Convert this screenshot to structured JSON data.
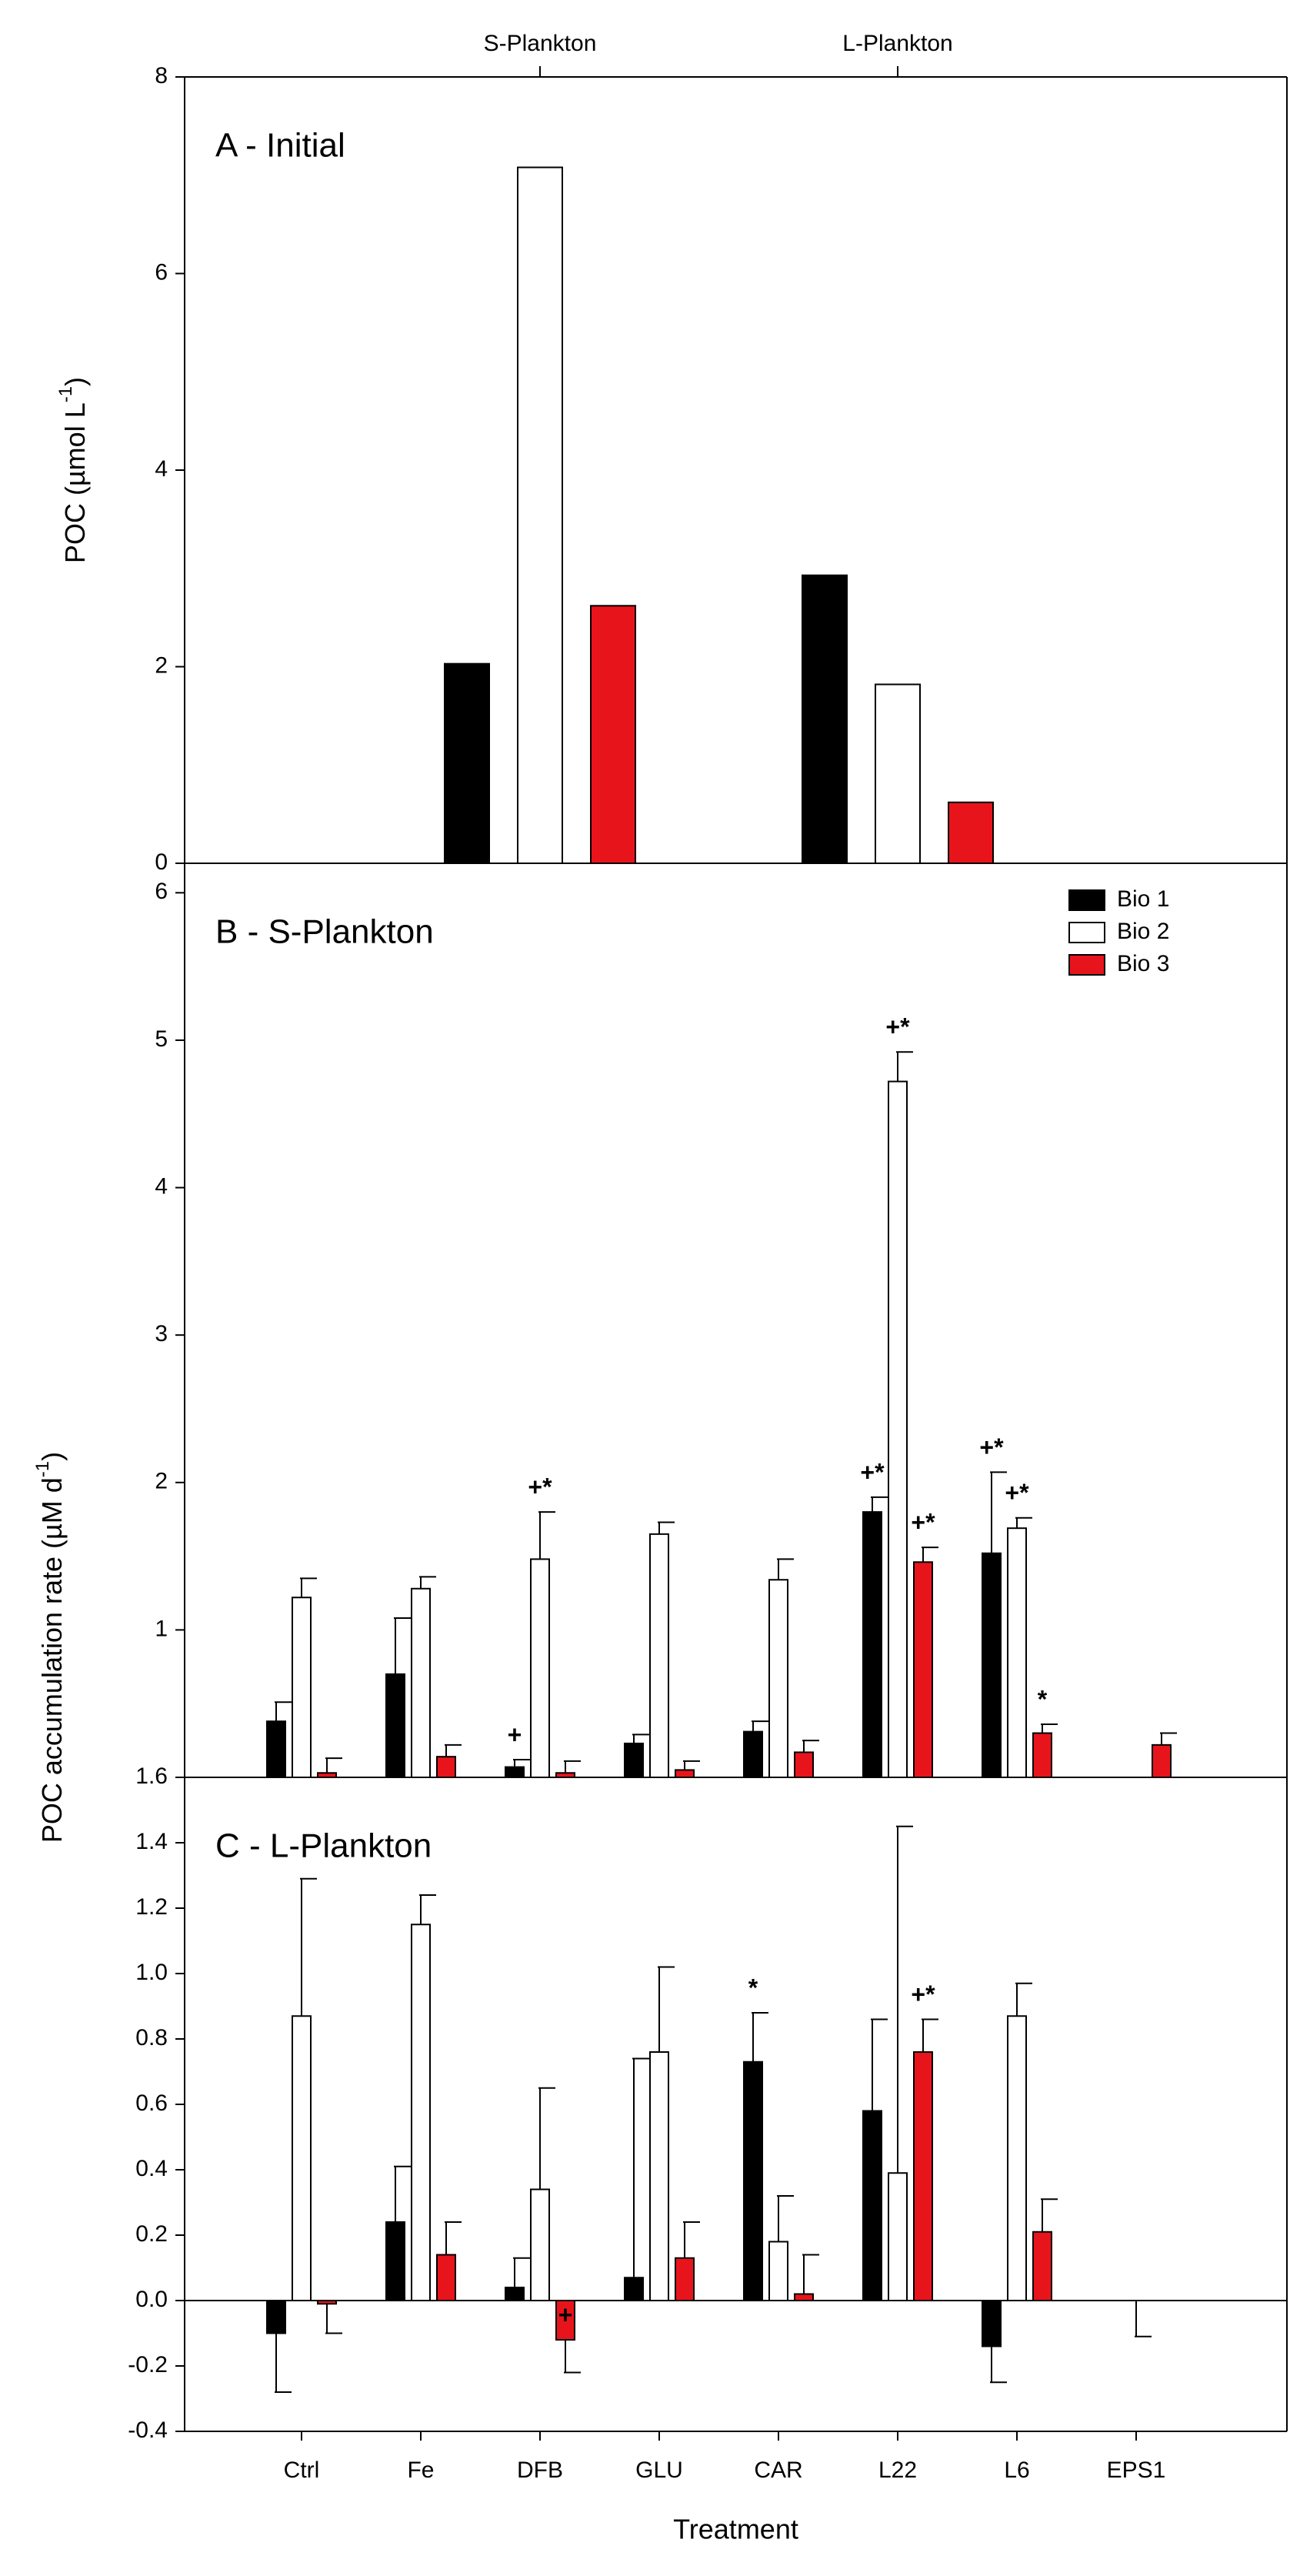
{
  "chart_data": [
    {
      "type": "bar",
      "title": "A - Initial",
      "y_label": "POC (µmol L",
      "y_label_sup": "-1",
      "y_label_end": ")",
      "categories": [
        "S-Plankton",
        "L-Plankton"
      ],
      "ylim": [
        0,
        8
      ],
      "yticks": [
        0,
        2,
        4,
        6,
        8
      ],
      "series": [
        {
          "color": "#000000",
          "values": [
            2.03,
            2.93
          ]
        },
        {
          "color": "#ffffff",
          "values": [
            7.08,
            1.82
          ]
        },
        {
          "color": "#e8141c",
          "values": [
            2.62,
            0.62
          ]
        }
      ]
    },
    {
      "type": "bar",
      "title": "B - S-Plankton",
      "y_label": "POC accumulation rate (µM d",
      "y_label_sup": "-1",
      "y_label_end": ")",
      "ylim": [
        0,
        6.2
      ],
      "yticks": [
        1,
        2,
        3,
        4,
        5,
        6
      ],
      "legend": "top-right",
      "series": [
        {
          "name": "Bio 1",
          "color": "#000000",
          "values": [
            0.38,
            0.7,
            0.07,
            0.23,
            0.31,
            1.8,
            1.52,
            null
          ],
          "errors": [
            0.13,
            0.38,
            0.05,
            0.06,
            0.07,
            0.1,
            0.55,
            null
          ],
          "annotations": [
            null,
            null,
            "+",
            null,
            null,
            "+*",
            "+*",
            null
          ]
        },
        {
          "name": "Bio 2",
          "color": "#ffffff",
          "values": [
            1.22,
            1.28,
            1.48,
            1.65,
            1.34,
            4.72,
            1.69,
            null
          ],
          "errors": [
            0.13,
            0.08,
            0.32,
            0.08,
            0.14,
            0.2,
            0.07,
            null
          ],
          "annotations": [
            null,
            null,
            "+*",
            null,
            null,
            "+*",
            "+*",
            null
          ]
        },
        {
          "name": "Bio 3",
          "color": "#e8141c",
          "values": [
            0.03,
            0.14,
            0.03,
            0.05,
            0.17,
            1.46,
            0.3,
            0.22
          ],
          "errors": [
            0.1,
            0.08,
            0.08,
            0.06,
            0.08,
            0.1,
            0.06,
            0.08
          ],
          "annotations": [
            null,
            null,
            null,
            null,
            null,
            "+*",
            "*",
            null
          ]
        }
      ]
    },
    {
      "type": "bar",
      "title": "C - L-Plankton",
      "x_label": "Treatment",
      "categories": [
        "Ctrl",
        "Fe",
        "DFB",
        "GLU",
        "CAR",
        "L22",
        "L6",
        "EPS1"
      ],
      "ylim": [
        -0.4,
        1.6
      ],
      "yticks": [
        -0.4,
        -0.2,
        {
          "value": 0,
          "label": "0.0"
        },
        0.2,
        0.4,
        0.6,
        0.8,
        {
          "value": 1,
          "label": "1.0"
        },
        1.2,
        1.4,
        1.6
      ],
      "series": [
        {
          "color": "#000000",
          "values": [
            -0.1,
            0.24,
            0.04,
            0.07,
            0.73,
            0.58,
            -0.14,
            null
          ],
          "errors": [
            0.18,
            0.17,
            0.09,
            0.67,
            0.15,
            0.28,
            0.11,
            null
          ],
          "annotations": [
            null,
            null,
            null,
            null,
            "*",
            null,
            null,
            null
          ]
        },
        {
          "color": "#ffffff",
          "values": [
            0.87,
            1.15,
            0.34,
            0.76,
            0.18,
            0.39,
            0.87,
            0
          ],
          "errors": [
            0.42,
            0.09,
            0.31,
            0.26,
            0.14,
            1.06,
            0.1,
            0.11
          ],
          "annotations": [
            null,
            null,
            null,
            null,
            null,
            null,
            null,
            null
          ]
        },
        {
          "color": "#e8141c",
          "values": [
            -0.01,
            0.14,
            -0.12,
            0.13,
            0.02,
            0.76,
            0.21,
            null
          ],
          "errors": [
            0.09,
            0.1,
            0.1,
            0.11,
            0.12,
            0.1,
            0.1,
            null
          ],
          "annotations": [
            null,
            null,
            "+",
            null,
            null,
            "+*",
            null,
            null
          ]
        }
      ]
    }
  ]
}
